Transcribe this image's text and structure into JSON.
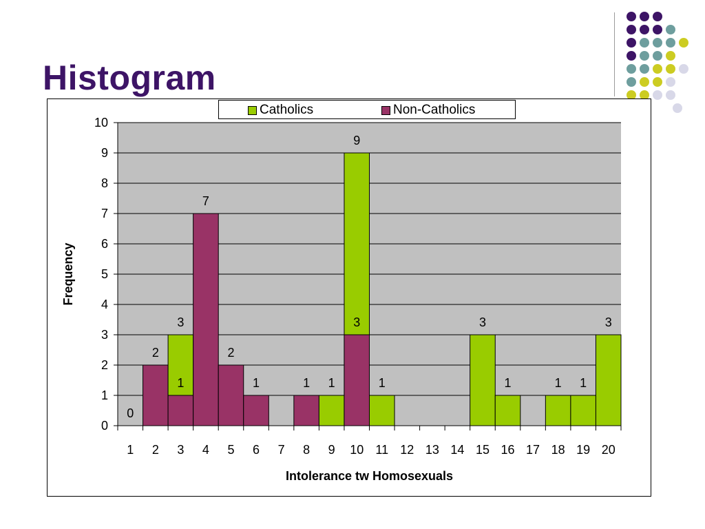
{
  "title": "Histogram",
  "colors": {
    "title": "#3d1466",
    "plot_bg": "#c0c0c0",
    "catholics": "#99cc00",
    "non_catholics": "#993366",
    "deco_purple": "#3d1466",
    "deco_teal": "#6e9e9e",
    "deco_yellow": "#cccc22",
    "deco_lavender": "#d8d8e8"
  },
  "decoration": {
    "rows": [
      [
        "deco_purple",
        "deco_purple",
        "deco_purple"
      ],
      [
        "deco_purple",
        "deco_purple",
        "deco_purple",
        "deco_teal"
      ],
      [
        "deco_purple",
        "deco_teal",
        "deco_teal",
        "deco_teal",
        "deco_yellow"
      ],
      [
        "deco_purple",
        "deco_teal",
        "deco_teal",
        "deco_yellow"
      ],
      [
        "deco_teal",
        "deco_teal",
        "deco_yellow",
        "deco_yellow",
        "deco_lavender"
      ],
      [
        "deco_teal",
        "deco_yellow",
        "deco_yellow",
        "deco_lavender"
      ],
      [
        "deco_yellow",
        "deco_yellow",
        "deco_lavender",
        "deco_lavender"
      ],
      [
        "deco_lavender"
      ]
    ]
  },
  "chart_data": {
    "type": "bar",
    "title": "",
    "xlabel": "Intolerance tw Homosexuals",
    "ylabel": "Frequency",
    "ylim": [
      0,
      10
    ],
    "yticks": [
      "0",
      "1",
      "2",
      "3",
      "4",
      "5",
      "6",
      "7",
      "8",
      "9",
      "10"
    ],
    "grid": true,
    "legend_position": "top-center",
    "categories": [
      "1",
      "2",
      "3",
      "4",
      "5",
      "6",
      "7",
      "8",
      "9",
      "10",
      "11",
      "12",
      "13",
      "14",
      "15",
      "16",
      "17",
      "18",
      "19",
      "20"
    ],
    "series": [
      {
        "name": "Catholics",
        "color": "#99cc00",
        "values": [
          0,
          0,
          3,
          0,
          0,
          0,
          0,
          0,
          1,
          9,
          1,
          0,
          0,
          0,
          3,
          1,
          0,
          1,
          1,
          3
        ]
      },
      {
        "name": "Non-Catholics",
        "color": "#993366",
        "values": [
          0,
          2,
          1,
          7,
          2,
          1,
          0,
          1,
          0,
          3,
          0,
          0,
          0,
          0,
          0,
          0,
          0,
          0,
          0,
          0
        ]
      }
    ],
    "data_labels": [
      {
        "category": "1",
        "text": "0"
      },
      {
        "category": "2",
        "text": "2"
      },
      {
        "category": "3",
        "text": "3"
      },
      {
        "category": "3",
        "text": "1"
      },
      {
        "category": "4",
        "text": "7"
      },
      {
        "category": "5",
        "text": "2"
      },
      {
        "category": "6",
        "text": "1"
      },
      {
        "category": "8",
        "text": "1"
      },
      {
        "category": "9",
        "text": "1"
      },
      {
        "category": "10",
        "text": "9"
      },
      {
        "category": "10",
        "text": "3"
      },
      {
        "category": "11",
        "text": "1"
      },
      {
        "category": "15",
        "text": "3"
      },
      {
        "category": "16",
        "text": "1"
      },
      {
        "category": "18",
        "text": "1"
      },
      {
        "category": "19",
        "text": "1"
      },
      {
        "category": "20",
        "text": "3"
      }
    ]
  }
}
